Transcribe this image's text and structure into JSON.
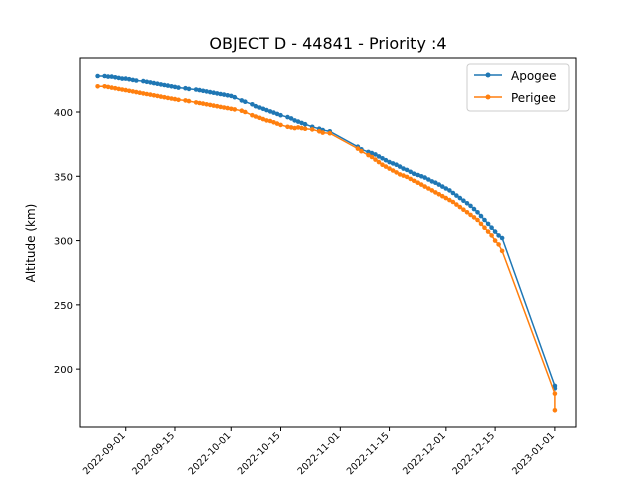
{
  "chart_data": {
    "type": "line",
    "title": "OBJECT D - 44841 - Priority :4",
    "xlabel": "",
    "ylabel": "Altitude (km)",
    "x_is_date": true,
    "xlim": [
      "2022-08-19",
      "2023-01-07"
    ],
    "ylim": [
      155,
      442
    ],
    "yticks": [
      200,
      250,
      300,
      350,
      400
    ],
    "xticks": [
      "2022-09-01",
      "2022-09-15",
      "2022-10-01",
      "2022-10-15",
      "2022-11-01",
      "2022-11-15",
      "2022-12-01",
      "2022-12-15",
      "2023-01-01"
    ],
    "grid": false,
    "legend_position": "upper right",
    "series": [
      {
        "name": "Apogee",
        "color": "#1f77b4",
        "points": [
          [
            "2022-08-24",
            428
          ],
          [
            "2022-08-26",
            428
          ],
          [
            "2022-08-27",
            427.5
          ],
          [
            "2022-08-28",
            427.5
          ],
          [
            "2022-08-29",
            427
          ],
          [
            "2022-08-30",
            426.5
          ],
          [
            "2022-08-31",
            426
          ],
          [
            "2022-09-01",
            426
          ],
          [
            "2022-09-02",
            425.5
          ],
          [
            "2022-09-03",
            425
          ],
          [
            "2022-09-04",
            424.5
          ],
          [
            "2022-09-06",
            424
          ],
          [
            "2022-09-07",
            423.5
          ],
          [
            "2022-09-08",
            423
          ],
          [
            "2022-09-09",
            422.5
          ],
          [
            "2022-09-10",
            422
          ],
          [
            "2022-09-11",
            421.5
          ],
          [
            "2022-09-12",
            421
          ],
          [
            "2022-09-13",
            420.5
          ],
          [
            "2022-09-14",
            420
          ],
          [
            "2022-09-15",
            419.5
          ],
          [
            "2022-09-16",
            419
          ],
          [
            "2022-09-18",
            418.5
          ],
          [
            "2022-09-19",
            418
          ],
          [
            "2022-09-21",
            417.5
          ],
          [
            "2022-09-22",
            417
          ],
          [
            "2022-09-23",
            416.5
          ],
          [
            "2022-09-24",
            416
          ],
          [
            "2022-09-25",
            415.5
          ],
          [
            "2022-09-26",
            415
          ],
          [
            "2022-09-27",
            414.5
          ],
          [
            "2022-09-28",
            414
          ],
          [
            "2022-09-29",
            413.5
          ],
          [
            "2022-09-30",
            413
          ],
          [
            "2022-10-01",
            412.5
          ],
          [
            "2022-10-02",
            411.5
          ],
          [
            "2022-10-04",
            409
          ],
          [
            "2022-10-05",
            408
          ],
          [
            "2022-10-07",
            406
          ],
          [
            "2022-10-08",
            404.5
          ],
          [
            "2022-10-09",
            403.5
          ],
          [
            "2022-10-10",
            402.5
          ],
          [
            "2022-10-11",
            401.5
          ],
          [
            "2022-10-12",
            400.5
          ],
          [
            "2022-10-13",
            399.5
          ],
          [
            "2022-10-14",
            398.5
          ],
          [
            "2022-10-15",
            397.5
          ],
          [
            "2022-10-17",
            396
          ],
          [
            "2022-10-18",
            395
          ],
          [
            "2022-10-19",
            393.5
          ],
          [
            "2022-10-20",
            392.5
          ],
          [
            "2022-10-21",
            391.5
          ],
          [
            "2022-10-22",
            390.5
          ],
          [
            "2022-10-24",
            388.5
          ],
          [
            "2022-10-26",
            387
          ],
          [
            "2022-10-27",
            386
          ],
          [
            "2022-10-29",
            385
          ],
          [
            "2022-11-06",
            373
          ],
          [
            "2022-11-07",
            371
          ],
          [
            "2022-11-09",
            369
          ],
          [
            "2022-11-10",
            368
          ],
          [
            "2022-11-11",
            367
          ],
          [
            "2022-11-12",
            365.5
          ],
          [
            "2022-11-13",
            364
          ],
          [
            "2022-11-14",
            362.5
          ],
          [
            "2022-11-15",
            361
          ],
          [
            "2022-11-16",
            360
          ],
          [
            "2022-11-17",
            359
          ],
          [
            "2022-11-18",
            357.5
          ],
          [
            "2022-11-19",
            356
          ],
          [
            "2022-11-20",
            355
          ],
          [
            "2022-11-21",
            353.5
          ],
          [
            "2022-11-22",
            352
          ],
          [
            "2022-11-23",
            351
          ],
          [
            "2022-11-24",
            350
          ],
          [
            "2022-11-25",
            349
          ],
          [
            "2022-11-26",
            347.5
          ],
          [
            "2022-11-27",
            346
          ],
          [
            "2022-11-28",
            345
          ],
          [
            "2022-11-29",
            343.5
          ],
          [
            "2022-11-30",
            342
          ],
          [
            "2022-12-01",
            340.5
          ],
          [
            "2022-12-02",
            339
          ],
          [
            "2022-12-03",
            337
          ],
          [
            "2022-12-04",
            335
          ],
          [
            "2022-12-05",
            333
          ],
          [
            "2022-12-06",
            331
          ],
          [
            "2022-12-07",
            329
          ],
          [
            "2022-12-08",
            327
          ],
          [
            "2022-12-09",
            324.5
          ],
          [
            "2022-12-10",
            322
          ],
          [
            "2022-12-11",
            319
          ],
          [
            "2022-12-12",
            316
          ],
          [
            "2022-12-13",
            313
          ],
          [
            "2022-12-14",
            310
          ],
          [
            "2022-12-15",
            307
          ],
          [
            "2022-12-16",
            304
          ],
          [
            "2022-12-17",
            302
          ],
          [
            "2023-01-01",
            187
          ],
          [
            "2023-01-01",
            185
          ]
        ]
      },
      {
        "name": "Perigee",
        "color": "#ff7f0e",
        "points": [
          [
            "2022-08-24",
            420
          ],
          [
            "2022-08-26",
            420
          ],
          [
            "2022-08-27",
            419.5
          ],
          [
            "2022-08-28",
            419
          ],
          [
            "2022-08-29",
            418.5
          ],
          [
            "2022-08-30",
            418
          ],
          [
            "2022-08-31",
            417.5
          ],
          [
            "2022-09-01",
            417
          ],
          [
            "2022-09-02",
            416.5
          ],
          [
            "2022-09-03",
            416
          ],
          [
            "2022-09-04",
            415.5
          ],
          [
            "2022-09-05",
            415
          ],
          [
            "2022-09-06",
            414.5
          ],
          [
            "2022-09-07",
            414
          ],
          [
            "2022-09-08",
            413.5
          ],
          [
            "2022-09-09",
            413
          ],
          [
            "2022-09-10",
            412.5
          ],
          [
            "2022-09-11",
            412
          ],
          [
            "2022-09-12",
            411.5
          ],
          [
            "2022-09-13",
            411
          ],
          [
            "2022-09-14",
            410.5
          ],
          [
            "2022-09-15",
            410
          ],
          [
            "2022-09-16",
            409.5
          ],
          [
            "2022-09-18",
            409
          ],
          [
            "2022-09-19",
            408.5
          ],
          [
            "2022-09-21",
            407.5
          ],
          [
            "2022-09-22",
            407
          ],
          [
            "2022-09-23",
            406.5
          ],
          [
            "2022-09-24",
            406
          ],
          [
            "2022-09-25",
            405.5
          ],
          [
            "2022-09-26",
            405
          ],
          [
            "2022-09-27",
            404.5
          ],
          [
            "2022-09-28",
            404
          ],
          [
            "2022-09-29",
            403.5
          ],
          [
            "2022-09-30",
            403
          ],
          [
            "2022-10-01",
            402.5
          ],
          [
            "2022-10-02",
            402
          ],
          [
            "2022-10-04",
            401
          ],
          [
            "2022-10-05",
            400
          ],
          [
            "2022-10-07",
            397.5
          ],
          [
            "2022-10-08",
            396.5
          ],
          [
            "2022-10-09",
            395.5
          ],
          [
            "2022-10-10",
            394.5
          ],
          [
            "2022-10-11",
            393.5
          ],
          [
            "2022-10-12",
            393
          ],
          [
            "2022-10-13",
            392
          ],
          [
            "2022-10-14",
            391
          ],
          [
            "2022-10-15",
            390
          ],
          [
            "2022-10-17",
            388.5
          ],
          [
            "2022-10-18",
            388
          ],
          [
            "2022-10-19",
            387.5
          ],
          [
            "2022-10-20",
            388
          ],
          [
            "2022-10-21",
            387.5
          ],
          [
            "2022-10-22",
            387
          ],
          [
            "2022-10-24",
            386.5
          ],
          [
            "2022-10-26",
            385
          ],
          [
            "2022-10-27",
            384
          ],
          [
            "2022-10-29",
            383.5
          ],
          [
            "2022-11-06",
            371.5
          ],
          [
            "2022-11-07",
            369.5
          ],
          [
            "2022-11-09",
            366.5
          ],
          [
            "2022-11-10",
            365
          ],
          [
            "2022-11-11",
            363
          ],
          [
            "2022-11-12",
            361
          ],
          [
            "2022-11-13",
            359
          ],
          [
            "2022-11-14",
            357.5
          ],
          [
            "2022-11-15",
            356
          ],
          [
            "2022-11-16",
            354.5
          ],
          [
            "2022-11-17",
            353
          ],
          [
            "2022-11-18",
            351.5
          ],
          [
            "2022-11-19",
            350.5
          ],
          [
            "2022-11-20",
            349.5
          ],
          [
            "2022-11-21",
            348
          ],
          [
            "2022-11-22",
            346.5
          ],
          [
            "2022-11-23",
            345
          ],
          [
            "2022-11-24",
            343.5
          ],
          [
            "2022-11-25",
            342
          ],
          [
            "2022-11-26",
            340.5
          ],
          [
            "2022-11-27",
            339
          ],
          [
            "2022-11-28",
            337.5
          ],
          [
            "2022-11-29",
            336
          ],
          [
            "2022-11-30",
            334.5
          ],
          [
            "2022-12-01",
            333
          ],
          [
            "2022-12-02",
            331.5
          ],
          [
            "2022-12-03",
            330
          ],
          [
            "2022-12-04",
            328
          ],
          [
            "2022-12-05",
            326
          ],
          [
            "2022-12-06",
            324
          ],
          [
            "2022-12-07",
            322
          ],
          [
            "2022-12-08",
            320
          ],
          [
            "2022-12-09",
            318
          ],
          [
            "2022-12-10",
            316
          ],
          [
            "2022-12-11",
            313
          ],
          [
            "2022-12-12",
            310
          ],
          [
            "2022-12-13",
            307
          ],
          [
            "2022-12-14",
            304
          ],
          [
            "2022-12-15",
            300
          ],
          [
            "2022-12-16",
            297
          ],
          [
            "2022-12-17",
            292
          ],
          [
            "2023-01-01",
            181
          ],
          [
            "2023-01-01",
            168
          ]
        ]
      }
    ]
  }
}
